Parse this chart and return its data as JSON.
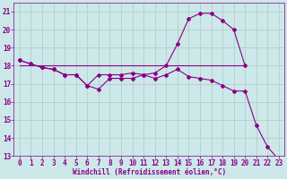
{
  "background_color": "#cce8e8",
  "grid_color": "#b0c8c8",
  "line_color": "#880088",
  "xlabel": "Windchill (Refroidissement éolien,°C)",
  "xlim": [
    -0.5,
    23.5
  ],
  "ylim": [
    13,
    21.5
  ],
  "yticks": [
    13,
    14,
    15,
    16,
    17,
    18,
    19,
    20,
    21
  ],
  "xticks": [
    0,
    1,
    2,
    3,
    4,
    5,
    6,
    7,
    8,
    9,
    10,
    11,
    12,
    13,
    14,
    15,
    16,
    17,
    18,
    19,
    20,
    21,
    22,
    23
  ],
  "line1_x": [
    0,
    1,
    2,
    3,
    4,
    5,
    6,
    7,
    8,
    9,
    10,
    11,
    12,
    13,
    14,
    15,
    16,
    17,
    18,
    19,
    20,
    21,
    22,
    23
  ],
  "line1_y": [
    18.3,
    18.1,
    17.9,
    17.8,
    17.5,
    17.5,
    16.9,
    16.7,
    17.3,
    17.3,
    17.3,
    17.5,
    17.3,
    17.5,
    17.8,
    17.4,
    17.3,
    17.2,
    16.9,
    16.6,
    16.6,
    14.7,
    13.5,
    12.8
  ],
  "line2_x": [
    0,
    1,
    2,
    3,
    4,
    5,
    6,
    7,
    8,
    9,
    10,
    11,
    12,
    13,
    14,
    15,
    16,
    17,
    18,
    19,
    20
  ],
  "line2_y": [
    18.3,
    18.1,
    17.9,
    17.8,
    17.5,
    17.5,
    16.9,
    17.5,
    17.5,
    17.5,
    17.6,
    17.5,
    17.6,
    18.0,
    19.2,
    20.6,
    20.9,
    20.9,
    20.5,
    20.0,
    18.0
  ],
  "line3_x": [
    0,
    20
  ],
  "line3_y": [
    18.0,
    18.0
  ],
  "marker": "D",
  "markersize": 2.0,
  "linewidth": 0.8,
  "xlabel_fontsize": 5.5,
  "tick_fontsize": 5.5,
  "ylabel_fontsize": 6.0
}
